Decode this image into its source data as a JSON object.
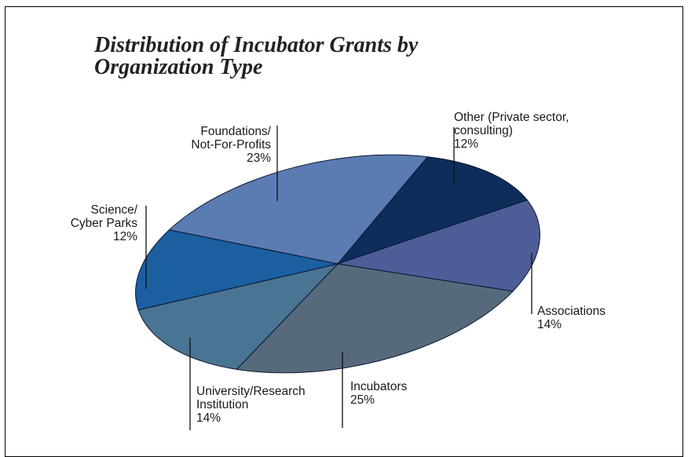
{
  "chart_data": {
    "type": "pie",
    "title": "Distribution of Incubator Grants by Organization Type",
    "title_lines": [
      "Distribution of Incubator Grants by",
      "Organization Type"
    ],
    "unit": "%",
    "slices": [
      {
        "label_lines": [
          "Other (Private sector,",
          "consulting)"
        ],
        "label": "Other (Private sector, consulting)",
        "value": 12,
        "pct": "12%",
        "color": "#0e2d5a"
      },
      {
        "label_lines": [
          "Associations"
        ],
        "label": "Associations",
        "value": 14,
        "pct": "14%",
        "color": "#4e5d98"
      },
      {
        "label_lines": [
          "Incubators"
        ],
        "label": "Incubators",
        "value": 25,
        "pct": "25%",
        "color": "#566a7c"
      },
      {
        "label_lines": [
          "University/Research",
          "Institution"
        ],
        "label": "University/Research Institution",
        "value": 14,
        "pct": "14%",
        "color": "#4a7493"
      },
      {
        "label_lines": [
          "Science/",
          "Cyber Parks"
        ],
        "label": "Science/ Cyber Parks",
        "value": 12,
        "pct": "12%",
        "color": "#1b5fa0"
      },
      {
        "label_lines": [
          "Foundations/",
          "Not-For-Profits"
        ],
        "label": "Foundations/ Not-For-Profits",
        "value": 23,
        "pct": "23%",
        "color": "#5b7bb3"
      }
    ]
  }
}
